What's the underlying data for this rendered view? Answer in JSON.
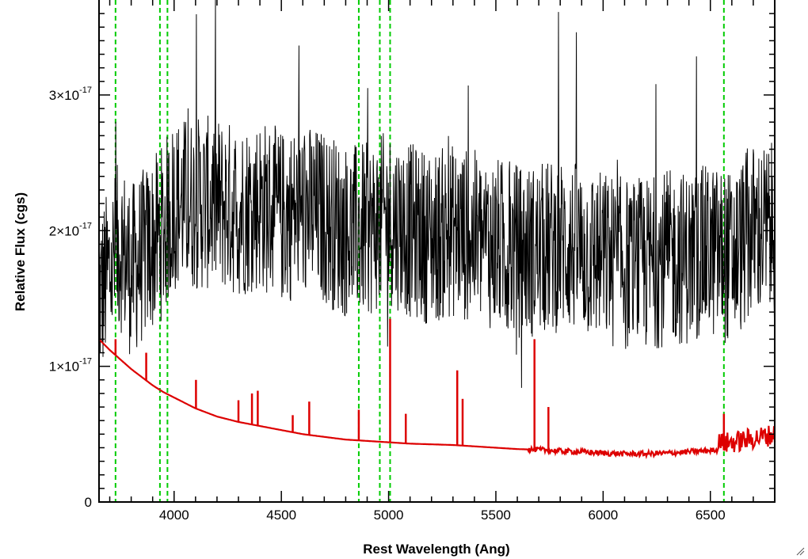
{
  "chart_data": {
    "type": "line",
    "xlabel": "Rest Wavelength (Ang)",
    "ylabel": "Relative Flux (cgs)",
    "xlim": [
      3650,
      6800
    ],
    "ylim": [
      0,
      3.7e-17
    ],
    "x_ticks": [
      {
        "value": 4000,
        "label": "4000"
      },
      {
        "value": 4500,
        "label": "4500"
      },
      {
        "value": 5000,
        "label": "5000"
      },
      {
        "value": 5500,
        "label": "5500"
      },
      {
        "value": 6000,
        "label": "6000"
      },
      {
        "value": 6500,
        "label": "6500"
      }
    ],
    "y_ticks": [
      {
        "value": 0,
        "mantissa": "0",
        "exponent": ""
      },
      {
        "value": 1e-17,
        "mantissa": "1×10",
        "exponent": "-17"
      },
      {
        "value": 2e-17,
        "mantissa": "2×10",
        "exponent": "-17"
      },
      {
        "value": 3e-17,
        "mantissa": "3×10",
        "exponent": "-17"
      }
    ],
    "grid": false,
    "legend": "none",
    "series": [
      {
        "color": "#000000",
        "description": "observed spectrum (noisy)",
        "x": [
          3650,
          3700,
          3750,
          3800,
          3850,
          3900,
          3950,
          4000,
          4100,
          4200,
          4300,
          4400,
          4500,
          4600,
          4700,
          4800,
          4900,
          5000,
          5100,
          5200,
          5300,
          5400,
          5500,
          5600,
          5700,
          5800,
          5900,
          6000,
          6100,
          6200,
          6300,
          6400,
          6500,
          6600,
          6700,
          6800
        ],
        "y": [
          1.5e-17,
          1.7e-17,
          1.9e-17,
          1.7e-17,
          1.8e-17,
          1.9e-17,
          2e-17,
          2.2e-17,
          2.2e-17,
          2.2e-17,
          2.15e-17,
          2.2e-17,
          2.1e-17,
          2.15e-17,
          2.1e-17,
          2e-17,
          2e-17,
          2.1e-17,
          2e-17,
          1.95e-17,
          2e-17,
          1.95e-17,
          1.9e-17,
          1.85e-17,
          1.85e-17,
          1.9e-17,
          1.85e-17,
          1.8e-17,
          1.75e-17,
          1.75e-17,
          1.8e-17,
          1.8e-17,
          1.85e-17,
          1.8e-17,
          2e-17,
          2e-17
        ]
      },
      {
        "color": "#dd0000",
        "description": "model / template spectrum",
        "x": [
          3650,
          3700,
          3750,
          3800,
          3850,
          3900,
          3950,
          4000,
          4100,
          4200,
          4300,
          4400,
          4500,
          4600,
          4700,
          4800,
          4900,
          5000,
          5100,
          5200,
          5300,
          5400,
          5500,
          5600,
          5700,
          5800,
          5900,
          6000,
          6100,
          6200,
          6300,
          6400,
          6500,
          6600,
          6700,
          6800
        ],
        "y": [
          1.2e-17,
          1.12e-17,
          1.05e-17,
          9.8e-18,
          9.2e-18,
          8.6e-18,
          8.1e-18,
          7.7e-18,
          6.9e-18,
          6.3e-18,
          5.9e-18,
          5.6e-18,
          5.3e-18,
          5e-18,
          4.8e-18,
          4.6e-18,
          4.5e-18,
          4.4e-18,
          4.3e-18,
          4.25e-18,
          4.2e-18,
          4.1e-18,
          4e-18,
          3.9e-18,
          3.85e-18,
          3.75e-18,
          3.7e-18,
          3.6e-18,
          3.55e-18,
          3.55e-18,
          3.6e-18,
          3.7e-18,
          3.8e-18,
          3.9e-18,
          4.2e-18,
          4.5e-18
        ],
        "emission_lines": [
          {
            "x": 3727,
            "peak": 1.2e-17
          },
          {
            "x": 3870,
            "peak": 1.1e-17
          },
          {
            "x": 4102,
            "peak": 9e-18
          },
          {
            "x": 4300,
            "peak": 7.5e-18
          },
          {
            "x": 4363,
            "peak": 8e-18
          },
          {
            "x": 4390,
            "peak": 8.2e-18
          },
          {
            "x": 4553,
            "peak": 6.4e-18
          },
          {
            "x": 4630,
            "peak": 7.4e-18
          },
          {
            "x": 4861,
            "peak": 6.8e-18
          },
          {
            "x": 5007,
            "peak": 1.35e-17
          },
          {
            "x": 5080,
            "peak": 6.5e-18
          },
          {
            "x": 5320,
            "peak": 9.7e-18
          },
          {
            "x": 5345,
            "peak": 7.6e-18
          },
          {
            "x": 5680,
            "peak": 1.2e-17
          },
          {
            "x": 5745,
            "peak": 7e-18
          },
          {
            "x": 6563,
            "peak": 6.5e-18
          }
        ]
      }
    ],
    "vertical_markers": {
      "color": "#00cc00",
      "style": "dashed",
      "x": [
        3727,
        3934,
        3969,
        4861,
        4959,
        5007,
        6563
      ]
    }
  }
}
